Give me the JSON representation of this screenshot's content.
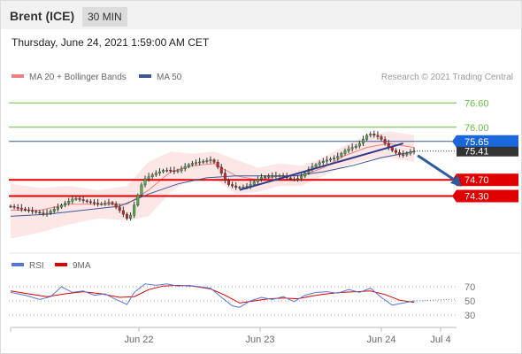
{
  "header": {
    "instrument": "Brent (ICE)",
    "timeframe": "30 MIN"
  },
  "datetime": "Thursday, June 24, 2021 1:59:00 AM CET",
  "credit": "Research © 2021 Trading Central",
  "colors": {
    "bollinger": "#f08080",
    "ma50": "#3b5998",
    "resistance": "#66bb44",
    "support": "#e00000",
    "price_up": "#4caf50",
    "price_down": "#cc2222",
    "rsi": "#5577dd",
    "rsi_ma": "#dd0000",
    "pivot": "#1a66dd",
    "last": "#333333"
  },
  "chart_data": [
    {
      "type": "candlestick",
      "legend": [
        {
          "name": "MA 20 + Bollinger Bands",
          "color": "#f08080"
        },
        {
          "name": "MA 50",
          "color": "#3b5998"
        }
      ],
      "x_ticks": [
        "Jun 22",
        "Jun 23",
        "Jun 24",
        "Jul 4"
      ],
      "ylim": [
        73.0,
        77.0
      ],
      "levels": [
        {
          "label": "76.60",
          "value": 76.6,
          "kind": "resistance"
        },
        {
          "label": "76.00",
          "value": 76.0,
          "kind": "resistance"
        },
        {
          "label": "75.65",
          "value": 75.65,
          "kind": "pivot"
        },
        {
          "label": "75.41",
          "value": 75.41,
          "kind": "last"
        },
        {
          "label": "74.70",
          "value": 74.7,
          "kind": "support"
        },
        {
          "label": "74.30",
          "value": 74.3,
          "kind": "support"
        }
      ],
      "price_path": [
        {
          "x": 0,
          "y": 74.05
        },
        {
          "x": 5,
          "y": 73.95
        },
        {
          "x": 10,
          "y": 73.85
        },
        {
          "x": 14,
          "y": 74.05
        },
        {
          "x": 18,
          "y": 74.25
        },
        {
          "x": 22,
          "y": 74.15
        },
        {
          "x": 25,
          "y": 74.1
        },
        {
          "x": 28,
          "y": 74.15
        },
        {
          "x": 31,
          "y": 73.9
        },
        {
          "x": 33,
          "y": 73.7
        },
        {
          "x": 35,
          "y": 74.2
        },
        {
          "x": 37,
          "y": 74.7
        },
        {
          "x": 40,
          "y": 74.85
        },
        {
          "x": 43,
          "y": 74.95
        },
        {
          "x": 46,
          "y": 74.9
        },
        {
          "x": 50,
          "y": 75.1
        },
        {
          "x": 53,
          "y": 75.15
        },
        {
          "x": 56,
          "y": 75.2
        },
        {
          "x": 58,
          "y": 74.95
        },
        {
          "x": 60,
          "y": 74.6
        },
        {
          "x": 63,
          "y": 74.5
        },
        {
          "x": 66,
          "y": 74.55
        },
        {
          "x": 69,
          "y": 74.75
        },
        {
          "x": 72,
          "y": 74.8
        },
        {
          "x": 75,
          "y": 74.8
        },
        {
          "x": 78,
          "y": 74.7
        },
        {
          "x": 80,
          "y": 74.75
        },
        {
          "x": 83,
          "y": 75.0
        },
        {
          "x": 86,
          "y": 75.15
        },
        {
          "x": 90,
          "y": 75.25
        },
        {
          "x": 93,
          "y": 75.45
        },
        {
          "x": 96,
          "y": 75.55
        },
        {
          "x": 99,
          "y": 75.85
        },
        {
          "x": 102,
          "y": 75.75
        },
        {
          "x": 105,
          "y": 75.45
        },
        {
          "x": 108,
          "y": 75.3
        },
        {
          "x": 111,
          "y": 75.41
        }
      ],
      "bollinger": {
        "upper": [
          {
            "x": 0,
            "y": 74.6
          },
          {
            "x": 8,
            "y": 74.5
          },
          {
            "x": 16,
            "y": 74.55
          },
          {
            "x": 24,
            "y": 74.45
          },
          {
            "x": 32,
            "y": 74.55
          },
          {
            "x": 38,
            "y": 75.15
          },
          {
            "x": 44,
            "y": 75.4
          },
          {
            "x": 50,
            "y": 75.35
          },
          {
            "x": 56,
            "y": 75.4
          },
          {
            "x": 62,
            "y": 75.2
          },
          {
            "x": 68,
            "y": 75.0
          },
          {
            "x": 74,
            "y": 75.1
          },
          {
            "x": 80,
            "y": 75.05
          },
          {
            "x": 86,
            "y": 75.25
          },
          {
            "x": 92,
            "y": 75.55
          },
          {
            "x": 98,
            "y": 75.8
          },
          {
            "x": 104,
            "y": 75.9
          },
          {
            "x": 111,
            "y": 75.8
          }
        ],
        "lower": [
          {
            "x": 0,
            "y": 73.25
          },
          {
            "x": 8,
            "y": 73.4
          },
          {
            "x": 16,
            "y": 73.6
          },
          {
            "x": 24,
            "y": 73.75
          },
          {
            "x": 32,
            "y": 73.7
          },
          {
            "x": 38,
            "y": 73.8
          },
          {
            "x": 44,
            "y": 74.4
          },
          {
            "x": 50,
            "y": 74.75
          },
          {
            "x": 56,
            "y": 74.75
          },
          {
            "x": 62,
            "y": 74.35
          },
          {
            "x": 68,
            "y": 74.4
          },
          {
            "x": 74,
            "y": 74.55
          },
          {
            "x": 80,
            "y": 74.55
          },
          {
            "x": 86,
            "y": 74.8
          },
          {
            "x": 92,
            "y": 75.05
          },
          {
            "x": 98,
            "y": 75.2
          },
          {
            "x": 104,
            "y": 75.25
          },
          {
            "x": 111,
            "y": 75.15
          }
        ],
        "middle": [
          {
            "x": 0,
            "y": 73.95
          },
          {
            "x": 8,
            "y": 73.95
          },
          {
            "x": 16,
            "y": 74.1
          },
          {
            "x": 24,
            "y": 74.1
          },
          {
            "x": 32,
            "y": 74.1
          },
          {
            "x": 38,
            "y": 74.45
          },
          {
            "x": 44,
            "y": 74.9
          },
          {
            "x": 50,
            "y": 75.05
          },
          {
            "x": 56,
            "y": 75.1
          },
          {
            "x": 62,
            "y": 74.8
          },
          {
            "x": 68,
            "y": 74.7
          },
          {
            "x": 74,
            "y": 74.8
          },
          {
            "x": 80,
            "y": 74.8
          },
          {
            "x": 86,
            "y": 75.0
          },
          {
            "x": 92,
            "y": 75.3
          },
          {
            "x": 98,
            "y": 75.5
          },
          {
            "x": 104,
            "y": 75.6
          },
          {
            "x": 111,
            "y": 75.5
          }
        ]
      },
      "ma50": [
        {
          "x": 0,
          "y": 73.8
        },
        {
          "x": 10,
          "y": 73.85
        },
        {
          "x": 20,
          "y": 73.95
        },
        {
          "x": 30,
          "y": 74.05
        },
        {
          "x": 38,
          "y": 74.35
        },
        {
          "x": 46,
          "y": 74.6
        },
        {
          "x": 54,
          "y": 74.75
        },
        {
          "x": 62,
          "y": 74.8
        },
        {
          "x": 70,
          "y": 74.8
        },
        {
          "x": 78,
          "y": 74.8
        },
        {
          "x": 86,
          "y": 74.9
        },
        {
          "x": 94,
          "y": 75.05
        },
        {
          "x": 102,
          "y": 75.25
        },
        {
          "x": 111,
          "y": 75.4
        }
      ],
      "trendline": [
        {
          "x": 63,
          "y": 74.45
        },
        {
          "x": 108,
          "y": 75.6
        }
      ],
      "projection": [
        {
          "x": 112,
          "y": 75.3
        },
        {
          "x": 120,
          "y": 74.62
        }
      ]
    },
    {
      "type": "line",
      "legend": [
        {
          "name": "RSI",
          "color": "#5577dd"
        },
        {
          "name": "9MA",
          "color": "#dd0000"
        }
      ],
      "ylim": [
        20,
        80
      ],
      "y_ticks": [
        70,
        50,
        30
      ],
      "rsi": [
        {
          "x": 0,
          "y": 62
        },
        {
          "x": 4,
          "y": 58
        },
        {
          "x": 8,
          "y": 52
        },
        {
          "x": 11,
          "y": 56
        },
        {
          "x": 14,
          "y": 70
        },
        {
          "x": 17,
          "y": 62
        },
        {
          "x": 20,
          "y": 64
        },
        {
          "x": 23,
          "y": 58
        },
        {
          "x": 26,
          "y": 60
        },
        {
          "x": 29,
          "y": 52
        },
        {
          "x": 32,
          "y": 45
        },
        {
          "x": 34,
          "y": 62
        },
        {
          "x": 37,
          "y": 74
        },
        {
          "x": 40,
          "y": 72
        },
        {
          "x": 43,
          "y": 74
        },
        {
          "x": 46,
          "y": 71
        },
        {
          "x": 49,
          "y": 72
        },
        {
          "x": 52,
          "y": 70
        },
        {
          "x": 55,
          "y": 68
        },
        {
          "x": 58,
          "y": 55
        },
        {
          "x": 61,
          "y": 43
        },
        {
          "x": 63,
          "y": 41
        },
        {
          "x": 66,
          "y": 50
        },
        {
          "x": 69,
          "y": 55
        },
        {
          "x": 72,
          "y": 52
        },
        {
          "x": 75,
          "y": 56
        },
        {
          "x": 78,
          "y": 49
        },
        {
          "x": 81,
          "y": 58
        },
        {
          "x": 84,
          "y": 62
        },
        {
          "x": 87,
          "y": 63
        },
        {
          "x": 90,
          "y": 61
        },
        {
          "x": 93,
          "y": 66
        },
        {
          "x": 96,
          "y": 62
        },
        {
          "x": 99,
          "y": 68
        },
        {
          "x": 102,
          "y": 55
        },
        {
          "x": 105,
          "y": 44
        },
        {
          "x": 108,
          "y": 47
        },
        {
          "x": 111,
          "y": 50
        }
      ],
      "rsi_ma": [
        {
          "x": 0,
          "y": 64
        },
        {
          "x": 5,
          "y": 60
        },
        {
          "x": 10,
          "y": 56
        },
        {
          "x": 15,
          "y": 60
        },
        {
          "x": 20,
          "y": 63
        },
        {
          "x": 25,
          "y": 60
        },
        {
          "x": 30,
          "y": 55
        },
        {
          "x": 34,
          "y": 56
        },
        {
          "x": 38,
          "y": 66
        },
        {
          "x": 42,
          "y": 71
        },
        {
          "x": 46,
          "y": 72
        },
        {
          "x": 50,
          "y": 71
        },
        {
          "x": 55,
          "y": 67
        },
        {
          "x": 59,
          "y": 58
        },
        {
          "x": 63,
          "y": 47
        },
        {
          "x": 67,
          "y": 50
        },
        {
          "x": 71,
          "y": 53
        },
        {
          "x": 75,
          "y": 54
        },
        {
          "x": 79,
          "y": 53
        },
        {
          "x": 83,
          "y": 57
        },
        {
          "x": 87,
          "y": 60
        },
        {
          "x": 91,
          "y": 62
        },
        {
          "x": 95,
          "y": 63
        },
        {
          "x": 99,
          "y": 64
        },
        {
          "x": 103,
          "y": 59
        },
        {
          "x": 107,
          "y": 51
        },
        {
          "x": 111,
          "y": 48
        }
      ]
    }
  ]
}
